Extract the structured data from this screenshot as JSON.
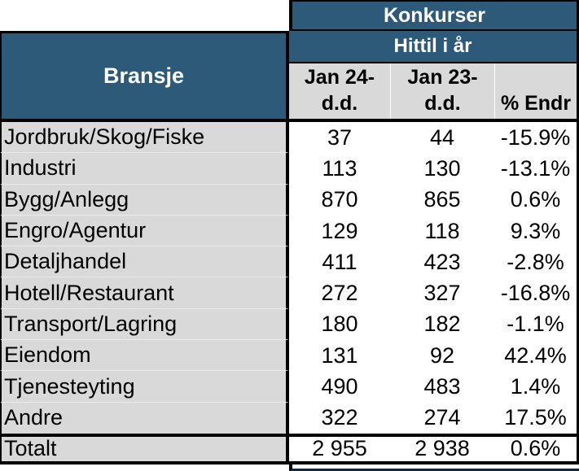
{
  "table": {
    "title": "Konkurser",
    "subtitle": "Hittil i år",
    "industry_header": "Bransje",
    "columns": {
      "col1_line1": "Jan 24-",
      "col1_line2": "d.d.",
      "col2_line1": "Jan 23-",
      "col2_line2": "d.d.",
      "col3_line2": "% Endr"
    },
    "rows": [
      {
        "label": "Jordbruk/Skog/Fiske",
        "jan24": "37",
        "jan23": "44",
        "pct": "-15.9%"
      },
      {
        "label": "Industri",
        "jan24": "113",
        "jan23": "130",
        "pct": "-13.1%"
      },
      {
        "label": "Bygg/Anlegg",
        "jan24": "870",
        "jan23": "865",
        "pct": "0.6%"
      },
      {
        "label": "Engro/Agentur",
        "jan24": "129",
        "jan23": "118",
        "pct": "9.3%"
      },
      {
        "label": "Detaljhandel",
        "jan24": "411",
        "jan23": "423",
        "pct": "-2.8%"
      },
      {
        "label": "Hotell/Restaurant",
        "jan24": "272",
        "jan23": "327",
        "pct": "-16.8%"
      },
      {
        "label": "Transport/Lagring",
        "jan24": "180",
        "jan23": "182",
        "pct": "-1.1%"
      },
      {
        "label": "Eiendom",
        "jan24": "131",
        "jan23": "92",
        "pct": "42.4%"
      },
      {
        "label": "Tjenesteyting",
        "jan24": "490",
        "jan23": "483",
        "pct": "1.4%"
      },
      {
        "label": "Andre",
        "jan24": "322",
        "jan23": "274",
        "pct": "17.5%"
      }
    ],
    "total": {
      "label": "Totalt",
      "jan24": "2 955",
      "jan23": "2 938",
      "pct": "0.6%"
    }
  },
  "colors": {
    "header_blue": "#2d5a78",
    "header_text": "#ffffff",
    "row_gray": "#d9d9d9",
    "border_black": "#000000"
  }
}
